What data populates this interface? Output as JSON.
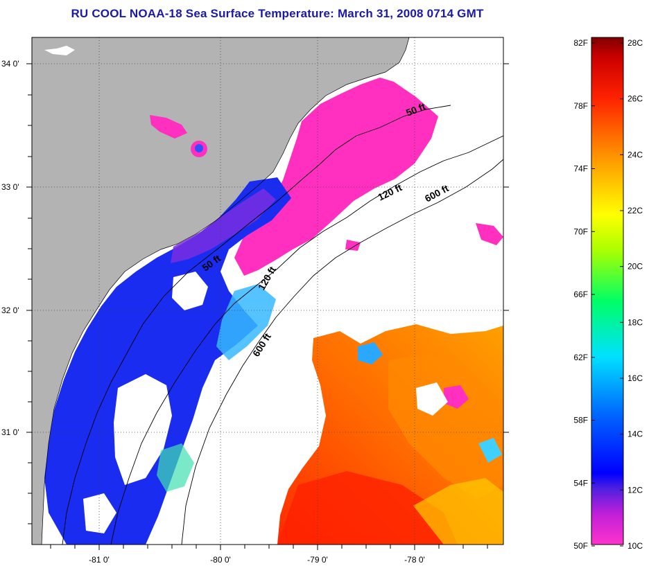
{
  "title": "RU COOL  NOAA-18  Sea Surface Temperature:  March 31, 2008 0714 GMT",
  "map": {
    "lat_labels": [
      "34 0'",
      "33 0'",
      "32 0'",
      "31 0'"
    ],
    "lon_labels": [
      "-81 0'",
      "-80 0'",
      "-79 0'",
      "-78 0'"
    ],
    "contour_labels": [
      "50 ft",
      "120 ft",
      "600 ft",
      "50 ft",
      "120 ft",
      "600 ft"
    ],
    "land_color": "#b3b3b3",
    "ocean_no_data_color": "#ffffff"
  },
  "colorbar": {
    "fahrenheit_labels": [
      "82F",
      "78F",
      "74F",
      "70F",
      "66F",
      "62F",
      "58F",
      "54F",
      "50F"
    ],
    "celsius_labels": [
      "28C",
      "26C",
      "24C",
      "22C",
      "20C",
      "18C",
      "16C",
      "14C",
      "12C",
      "10C"
    ],
    "range_f": [
      50,
      82
    ],
    "range_c": [
      10,
      28
    ],
    "color_stops": [
      "#ff33cc",
      "#8a2be2",
      "#0000ff",
      "#0077ff",
      "#00ffff",
      "#00ff66",
      "#aaff00",
      "#ffff00",
      "#ff9900",
      "#ff2200",
      "#cc0000",
      "#800000"
    ]
  }
}
